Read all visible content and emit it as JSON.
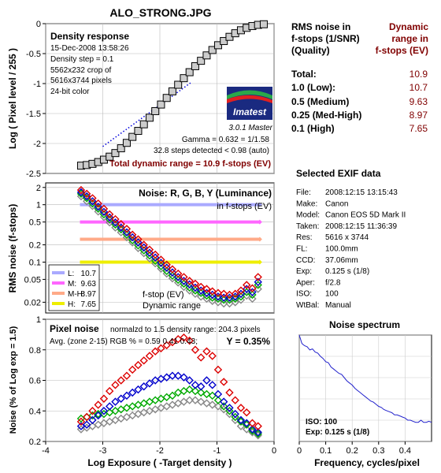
{
  "title": "ALO_STRONG.JPG",
  "colors": {
    "title": "#800080",
    "dark_red": "#800000",
    "red": "#dd0000",
    "green": "#00aa00",
    "blue": "#0000cc",
    "gray": "#888888",
    "low": "#aaaaff",
    "medium": "#ff66ff",
    "medhigh": "#ffaa88",
    "high": "#eeee00",
    "spectrum": "#2222cc"
  },
  "density_panel": {
    "heading": "Density response",
    "info": [
      "15-Dec-2008 13:58:26",
      "Density step = 0.1",
      "5562x232 crop of",
      "5616x3744 pixels",
      "24-bit color"
    ],
    "gamma": "Gamma = 0.632 = 1/1.58",
    "steps": "32.8 steps detected < 0.98 (auto)",
    "total_dr": "Total dynamic range = 10.9 f-stops (EV)",
    "logo_name": "Imatest",
    "logo_version": "3.0.1 Master"
  },
  "rms_panel": {
    "heading": "Noise: R, G, B, Y (Luminance)",
    "subheading": "in f-stops (EV)",
    "legend": [
      {
        "label": "L:",
        "value": "10.7",
        "color_key": "low"
      },
      {
        "label": "M:",
        "value": "9.63",
        "color_key": "medium"
      },
      {
        "label": "M-H:",
        "value": "8.97",
        "color_key": "medhigh"
      },
      {
        "label": "H:",
        "value": "7.65",
        "color_key": "high"
      }
    ],
    "annot1": "f-stop (EV)",
    "annot2": "Dynamic range"
  },
  "pixel_panel": {
    "heading": "Pixel noise",
    "line1_rest": "normalzd to 1.5 density range: 204.3 pixels",
    "line2": "Avg. (zone 2-15) RGB % = 0.59  0.41  0.43;",
    "y_label": "Y = 0.35%"
  },
  "dr_table": {
    "col1": [
      "RMS noise in",
      "f-stops (1/SNR)",
      "(Quality)"
    ],
    "col2": [
      "Dynamic",
      "range in",
      "f-stops (EV)"
    ],
    "rows": [
      {
        "label": "Total:",
        "value": "10.9"
      },
      {
        "label": "1.0   (Low):",
        "value": "10.7"
      },
      {
        "label": "0.5   (Medium)",
        "value": "9.63"
      },
      {
        "label": "0.25 (Med-High)",
        "value": "8.97"
      },
      {
        "label": "0.1   (High)",
        "value": "7.65"
      }
    ]
  },
  "exif": {
    "heading": "Selected EXIF data",
    "rows": [
      {
        "k": "File:",
        "v": "2008:12:15 13:15:43"
      },
      {
        "k": "Make:",
        "v": "Canon"
      },
      {
        "k": "Model:",
        "v": "Canon EOS 5D Mark II"
      },
      {
        "k": "Taken:",
        "v": "2008:12:15 11:36:39"
      },
      {
        "k": "Res:",
        "v": "5616 x 3744"
      },
      {
        "k": "FL:",
        "v": "100.0mm"
      },
      {
        "k": "CCD:",
        "v": "37.06mm"
      },
      {
        "k": "Exp:",
        "v": "0.125 s  (1/8)"
      },
      {
        "k": "Aper:",
        "v": "f/2.8"
      },
      {
        "k": "ISO:",
        "v": "100"
      },
      {
        "k": "WtBal:",
        "v": "Manual"
      }
    ]
  },
  "spectrum_panel": {
    "title": "Noise spectrum",
    "iso": "ISO:    100",
    "exp": "Exp:    0.125 s   (1/8)"
  },
  "chart_data": [
    {
      "type": "line",
      "name_key": "density",
      "ylabel": "Log ( Pixel level / 255 )",
      "xlim": [
        -4,
        0
      ],
      "ylim": [
        -2.5,
        0
      ],
      "xticks": [
        -4,
        -3,
        -2,
        -1,
        0
      ],
      "yticks": [
        -2.5,
        -2,
        -1.5,
        -1,
        -0.5,
        0
      ],
      "ytick_labels": [
        "-2.5",
        "-2",
        "-1.5",
        "-1",
        "-0.5",
        "0"
      ],
      "series": [
        {
          "x": [
            -3.38,
            -3.28,
            -3.18,
            -3.08,
            -2.98,
            -2.88,
            -2.78,
            -2.68,
            -2.58,
            -2.48,
            -2.38,
            -2.28,
            -2.18,
            -2.08,
            -1.98,
            -1.88,
            -1.78,
            -1.68,
            -1.58,
            -1.48,
            -1.38,
            -1.28,
            -1.18,
            -1.08,
            -0.98,
            -0.88,
            -0.78,
            -0.68,
            -0.58,
            -0.48,
            -0.38,
            -0.28,
            -0.18
          ],
          "values": [
            -2.37,
            -2.36,
            -2.34,
            -2.31,
            -2.27,
            -2.22,
            -2.16,
            -2.08,
            -1.99,
            -1.89,
            -1.79,
            -1.68,
            -1.57,
            -1.46,
            -1.35,
            -1.24,
            -1.13,
            -1.02,
            -0.91,
            -0.81,
            -0.71,
            -0.62,
            -0.53,
            -0.44,
            -0.36,
            -0.29,
            -0.22,
            -0.16,
            -0.11,
            -0.07,
            -0.04,
            -0.02,
            -0.01
          ]
        },
        {
          "name": "gamma fit",
          "x": [
            -3.0,
            -1.45
          ],
          "values": [
            -2.05,
            -0.98
          ]
        }
      ]
    },
    {
      "type": "scatter",
      "name_key": "rms",
      "ylabel": "RMS noise (f-stops)",
      "log_y": true,
      "xlim": [
        -4,
        0
      ],
      "ylim": [
        0.013,
        2.4
      ],
      "yticks": [
        2,
        1,
        0.5,
        0.2,
        0.1,
        0.05,
        0.02
      ],
      "ytick_labels": [
        "2",
        "1",
        "0.5",
        "0.2",
        "0.1",
        "0.05",
        "0.02"
      ],
      "hlines": [
        {
          "key": "low",
          "y": 1.0
        },
        {
          "key": "medium",
          "y": 0.5
        },
        {
          "key": "medhigh",
          "y": 0.25
        },
        {
          "key": "high",
          "y": 0.1
        }
      ],
      "x": [
        -3.38,
        -3.28,
        -3.18,
        -3.08,
        -2.98,
        -2.88,
        -2.78,
        -2.68,
        -2.58,
        -2.48,
        -2.38,
        -2.28,
        -2.18,
        -2.08,
        -1.98,
        -1.88,
        -1.78,
        -1.68,
        -1.58,
        -1.48,
        -1.38,
        -1.28,
        -1.18,
        -1.08,
        -0.98,
        -0.88,
        -0.78,
        -0.68,
        -0.58,
        -0.48,
        -0.38,
        -0.28
      ],
      "series": [
        {
          "key": "red",
          "values": [
            1.8,
            1.55,
            1.3,
            1.05,
            0.85,
            0.68,
            0.56,
            0.46,
            0.38,
            0.3,
            0.25,
            0.2,
            0.165,
            0.135,
            0.11,
            0.09,
            0.075,
            0.063,
            0.055,
            0.047,
            0.042,
            0.037,
            0.034,
            0.031,
            0.029,
            0.028,
            0.027,
            0.028,
            0.032,
            0.04,
            0.035,
            0.055
          ]
        },
        {
          "key": "green",
          "values": [
            1.55,
            1.3,
            1.05,
            0.85,
            0.68,
            0.55,
            0.45,
            0.37,
            0.3,
            0.24,
            0.195,
            0.16,
            0.13,
            0.105,
            0.085,
            0.07,
            0.058,
            0.049,
            0.042,
            0.036,
            0.032,
            0.029,
            0.026,
            0.024,
            0.023,
            0.022,
            0.022,
            0.023,
            0.025,
            0.03,
            0.027,
            0.04
          ]
        },
        {
          "key": "blue",
          "values": [
            1.65,
            1.4,
            1.15,
            0.92,
            0.75,
            0.6,
            0.49,
            0.4,
            0.33,
            0.27,
            0.22,
            0.18,
            0.145,
            0.12,
            0.097,
            0.08,
            0.066,
            0.055,
            0.047,
            0.041,
            0.036,
            0.032,
            0.029,
            0.027,
            0.025,
            0.024,
            0.024,
            0.025,
            0.028,
            0.034,
            0.03,
            0.045
          ]
        },
        {
          "key": "gray",
          "values": [
            1.4,
            1.15,
            0.95,
            0.76,
            0.61,
            0.49,
            0.4,
            0.33,
            0.27,
            0.22,
            0.175,
            0.143,
            0.116,
            0.095,
            0.077,
            0.063,
            0.052,
            0.044,
            0.037,
            0.032,
            0.028,
            0.025,
            0.023,
            0.021,
            0.02,
            0.019,
            0.019,
            0.02,
            0.022,
            0.026,
            0.023,
            0.034
          ]
        }
      ]
    },
    {
      "type": "scatter",
      "name_key": "pixel",
      "ylabel": "Noise (% of Log exp = 1.5)",
      "xlabel": "Log Exposure ( -Target density )",
      "xlim": [
        -4,
        0
      ],
      "ylim": [
        0.2,
        1.0
      ],
      "xticks": [
        -4,
        -3,
        -2,
        -1,
        0
      ],
      "xtick_labels": [
        "-4",
        "-3",
        "-2",
        "-1",
        "0"
      ],
      "yticks": [
        0.2,
        0.4,
        0.6,
        0.8,
        1.0
      ],
      "ytick_labels": [
        "0.2",
        "0.4",
        "0.6",
        "0.8",
        "1"
      ],
      "x": [
        -3.38,
        -3.28,
        -3.18,
        -3.08,
        -2.98,
        -2.88,
        -2.78,
        -2.68,
        -2.58,
        -2.48,
        -2.38,
        -2.28,
        -2.18,
        -2.08,
        -1.98,
        -1.88,
        -1.78,
        -1.68,
        -1.58,
        -1.48,
        -1.38,
        -1.28,
        -1.18,
        -1.08,
        -0.98,
        -0.88,
        -0.78,
        -0.68,
        -0.58,
        -0.48,
        -0.38,
        -0.28
      ],
      "series": [
        {
          "key": "red",
          "values": [
            0.33,
            0.36,
            0.4,
            0.44,
            0.48,
            0.53,
            0.57,
            0.6,
            0.63,
            0.67,
            0.7,
            0.73,
            0.76,
            0.79,
            0.81,
            0.83,
            0.85,
            0.87,
            0.88,
            0.86,
            0.8,
            0.75,
            0.79,
            0.76,
            0.67,
            0.59,
            0.52,
            0.47,
            0.42,
            0.39,
            0.32,
            0.3
          ]
        },
        {
          "key": "green",
          "values": [
            0.35,
            0.36,
            0.37,
            0.38,
            0.38,
            0.39,
            0.4,
            0.41,
            0.42,
            0.43,
            0.44,
            0.45,
            0.46,
            0.47,
            0.48,
            0.49,
            0.5,
            0.52,
            0.53,
            0.54,
            0.53,
            0.52,
            0.51,
            0.5,
            0.47,
            0.43,
            0.4,
            0.36,
            0.33,
            0.31,
            0.27,
            0.25
          ]
        },
        {
          "key": "blue",
          "values": [
            0.3,
            0.31,
            0.34,
            0.37,
            0.4,
            0.43,
            0.46,
            0.48,
            0.5,
            0.52,
            0.54,
            0.56,
            0.58,
            0.6,
            0.61,
            0.62,
            0.63,
            0.63,
            0.62,
            0.6,
            0.57,
            0.56,
            0.6,
            0.57,
            0.51,
            0.46,
            0.42,
            0.38,
            0.34,
            0.32,
            0.28,
            0.26
          ]
        },
        {
          "key": "gray",
          "values": [
            0.28,
            0.29,
            0.3,
            0.31,
            0.32,
            0.33,
            0.34,
            0.35,
            0.36,
            0.37,
            0.38,
            0.39,
            0.4,
            0.41,
            0.42,
            0.43,
            0.44,
            0.45,
            0.46,
            0.47,
            0.47,
            0.46,
            0.45,
            0.44,
            0.43,
            0.41,
            0.38,
            0.34,
            0.3,
            0.28,
            0.26,
            0.24
          ]
        }
      ]
    },
    {
      "type": "line",
      "name_key": "spectrum",
      "xlabel": "Frequency, cycles/pixel",
      "xlim": [
        0,
        0.5
      ],
      "ylim": [
        0,
        1
      ],
      "xticks": [
        0,
        0.1,
        0.2,
        0.3,
        0.4
      ],
      "xtick_labels": [
        "0",
        "0.1",
        "0.2",
        "0.3",
        "0.4"
      ],
      "yticks": [
        0,
        0.2,
        0.4,
        0.6,
        0.8,
        1
      ],
      "ytick_labels": [
        "0",
        "0.2",
        "0.4",
        "0.6",
        "0.8",
        "1"
      ],
      "x": [
        0.0,
        0.01,
        0.02,
        0.03,
        0.04,
        0.05,
        0.06,
        0.07,
        0.08,
        0.09,
        0.1,
        0.11,
        0.12,
        0.13,
        0.14,
        0.15,
        0.16,
        0.17,
        0.18,
        0.19,
        0.2,
        0.21,
        0.22,
        0.23,
        0.24,
        0.25,
        0.26,
        0.27,
        0.28,
        0.29,
        0.3,
        0.31,
        0.32,
        0.33,
        0.34,
        0.35,
        0.36,
        0.37,
        0.38,
        0.39,
        0.4,
        0.41,
        0.42,
        0.43,
        0.44,
        0.45,
        0.46,
        0.47,
        0.48,
        0.49,
        0.5
      ],
      "values": [
        1.0,
        0.92,
        0.9,
        0.89,
        0.86,
        0.87,
        0.84,
        0.83,
        0.8,
        0.78,
        0.75,
        0.74,
        0.7,
        0.68,
        0.66,
        0.64,
        0.63,
        0.6,
        0.57,
        0.55,
        0.53,
        0.5,
        0.48,
        0.46,
        0.44,
        0.42,
        0.4,
        0.38,
        0.37,
        0.35,
        0.33,
        0.32,
        0.3,
        0.29,
        0.28,
        0.27,
        0.25,
        0.25,
        0.24,
        0.23,
        0.22,
        0.2,
        0.2,
        0.19,
        0.18,
        0.18,
        0.2,
        0.18,
        0.18,
        0.19,
        0.18
      ]
    }
  ]
}
